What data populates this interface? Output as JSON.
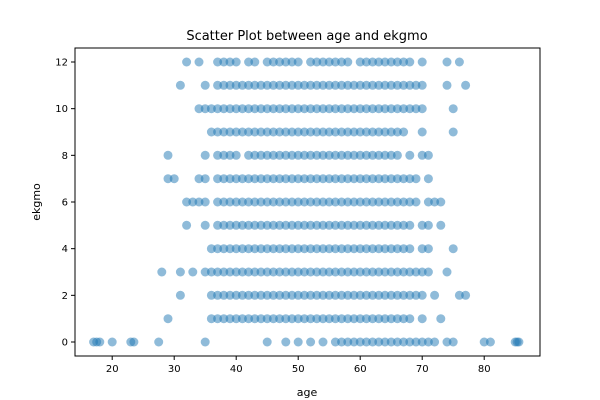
{
  "chart_data": {
    "type": "scatter",
    "title": "Scatter Plot between age and ekgmo",
    "xlabel": "age",
    "ylabel": "ekgmo",
    "xlim": [
      14,
      89
    ],
    "ylim": [
      -0.6,
      12.6
    ],
    "xticks": [
      20,
      30,
      40,
      50,
      60,
      70,
      80
    ],
    "yticks": [
      0,
      2,
      4,
      6,
      8,
      10,
      12
    ],
    "grid": false,
    "legend": "none",
    "marker_color": "#1f77b4",
    "marker_alpha": 0.5,
    "y_levels": [
      0,
      1,
      2,
      3,
      4,
      5,
      6,
      7,
      8,
      9,
      10,
      11,
      12
    ],
    "points_by_level": [
      [
        17,
        17.5,
        18,
        20,
        23,
        23.5,
        27.5,
        35,
        45,
        48,
        50,
        52,
        54,
        56,
        57,
        58,
        59,
        60,
        61,
        62,
        63,
        64,
        65,
        66,
        67,
        68,
        69,
        70,
        71,
        72,
        74,
        75,
        80,
        81,
        85,
        85.3,
        85.6
      ],
      [
        29,
        36,
        37,
        38,
        39,
        40,
        41,
        42,
        43,
        44,
        45,
        46,
        47,
        48,
        49,
        50,
        51,
        52,
        53,
        54,
        55,
        56,
        57,
        58,
        59,
        60,
        61,
        62,
        63,
        64,
        65,
        66,
        67,
        68,
        70,
        73
      ],
      [
        31,
        36,
        37,
        38,
        39,
        40,
        41,
        42,
        43,
        44,
        45,
        46,
        47,
        48,
        49,
        50,
        51,
        52,
        53,
        54,
        55,
        56,
        57,
        58,
        59,
        60,
        61,
        62,
        63,
        64,
        65,
        66,
        67,
        68,
        69,
        70,
        72,
        76,
        77
      ],
      [
        28,
        31,
        33,
        35,
        36,
        37,
        38,
        39,
        40,
        41,
        42,
        43,
        44,
        45,
        46,
        47,
        48,
        49,
        50,
        51,
        52,
        53,
        54,
        55,
        56,
        57,
        58,
        59,
        60,
        61,
        62,
        63,
        64,
        65,
        66,
        67,
        68,
        69,
        70,
        71,
        74
      ],
      [
        36,
        37,
        38,
        39,
        40,
        41,
        42,
        43,
        44,
        45,
        46,
        47,
        48,
        49,
        50,
        51,
        52,
        53,
        54,
        55,
        56,
        57,
        58,
        59,
        60,
        61,
        62,
        63,
        64,
        65,
        66,
        67,
        68,
        70,
        71,
        75
      ],
      [
        32,
        35,
        37,
        38,
        39,
        40,
        41,
        42,
        43,
        44,
        45,
        46,
        47,
        48,
        49,
        50,
        51,
        52,
        53,
        54,
        55,
        56,
        57,
        58,
        59,
        60,
        61,
        62,
        63,
        64,
        65,
        66,
        67,
        68,
        70,
        71,
        73
      ],
      [
        32,
        33,
        34,
        35,
        37,
        38,
        39,
        40,
        41,
        42,
        43,
        44,
        45,
        46,
        47,
        48,
        49,
        50,
        51,
        52,
        53,
        54,
        55,
        56,
        57,
        58,
        59,
        60,
        61,
        62,
        63,
        64,
        65,
        66,
        67,
        68,
        69,
        71,
        72,
        73
      ],
      [
        29,
        30,
        34,
        35,
        37,
        38,
        39,
        40,
        41,
        42,
        43,
        44,
        45,
        46,
        47,
        48,
        49,
        50,
        51,
        52,
        53,
        54,
        55,
        56,
        57,
        58,
        59,
        60,
        61,
        62,
        63,
        64,
        65,
        66,
        67,
        68,
        69,
        71
      ],
      [
        29,
        35,
        37,
        38,
        39,
        40,
        42,
        43,
        44,
        45,
        46,
        47,
        48,
        49,
        50,
        51,
        52,
        53,
        54,
        55,
        56,
        57,
        58,
        59,
        60,
        61,
        62,
        63,
        64,
        65,
        66,
        68,
        70,
        71
      ],
      [
        36,
        37,
        38,
        39,
        40,
        41,
        42,
        43,
        44,
        45,
        46,
        47,
        48,
        49,
        50,
        51,
        52,
        53,
        54,
        55,
        56,
        57,
        58,
        59,
        60,
        61,
        62,
        63,
        64,
        65,
        66,
        67,
        70,
        75
      ],
      [
        34,
        35,
        36,
        37,
        38,
        39,
        40,
        41,
        42,
        43,
        44,
        45,
        46,
        47,
        48,
        49,
        50,
        51,
        52,
        53,
        54,
        55,
        56,
        57,
        58,
        59,
        60,
        61,
        62,
        63,
        64,
        65,
        66,
        67,
        68,
        69,
        70,
        75
      ],
      [
        31,
        35,
        37,
        38,
        39,
        40,
        41,
        42,
        43,
        44,
        45,
        46,
        47,
        48,
        49,
        50,
        51,
        52,
        53,
        54,
        55,
        56,
        57,
        58,
        59,
        60,
        61,
        62,
        63,
        64,
        65,
        66,
        67,
        68,
        69,
        70,
        74,
        77
      ],
      [
        32,
        34,
        37,
        38,
        39,
        40,
        42,
        43,
        45,
        46,
        47,
        48,
        49,
        50,
        52,
        53,
        54,
        55,
        56,
        57,
        58,
        60,
        61,
        62,
        63,
        64,
        65,
        66,
        67,
        68,
        70,
        74,
        76
      ]
    ]
  }
}
